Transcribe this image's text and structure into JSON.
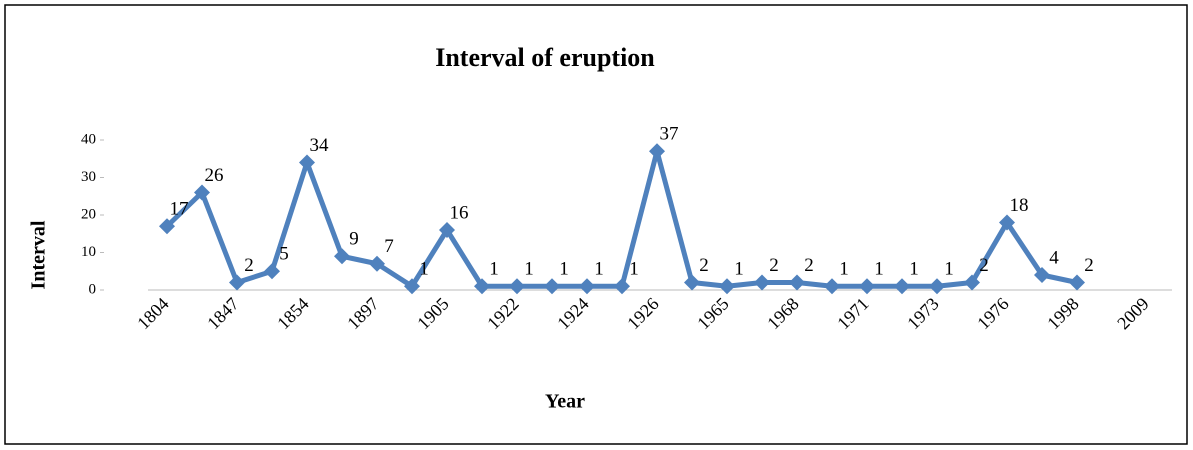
{
  "chart_data": {
    "type": "line",
    "title": "Interval of eruption",
    "x_label": "Year",
    "y_label": "Interval",
    "categories": [
      "1804",
      null,
      "1847",
      null,
      "1854",
      null,
      "1897",
      null,
      "1905",
      null,
      "1922",
      null,
      "1924",
      null,
      "1926",
      null,
      "1965",
      null,
      "1968",
      null,
      "1971",
      null,
      "1973",
      null,
      "1976",
      null,
      "1998",
      null,
      "2009"
    ],
    "series": [
      {
        "name": "Interval",
        "color": "#4f81bd",
        "values": [
          17,
          26,
          2,
          5,
          34,
          9,
          7,
          1,
          16,
          1,
          1,
          1,
          1,
          1,
          37,
          2,
          1,
          2,
          2,
          1,
          1,
          1,
          1,
          2,
          18,
          4,
          2,
          null,
          null
        ]
      }
    ],
    "ylim": [
      0,
      40
    ],
    "yticks": [
      0,
      10,
      20,
      30,
      40
    ],
    "grid": false,
    "data_labels": true
  }
}
